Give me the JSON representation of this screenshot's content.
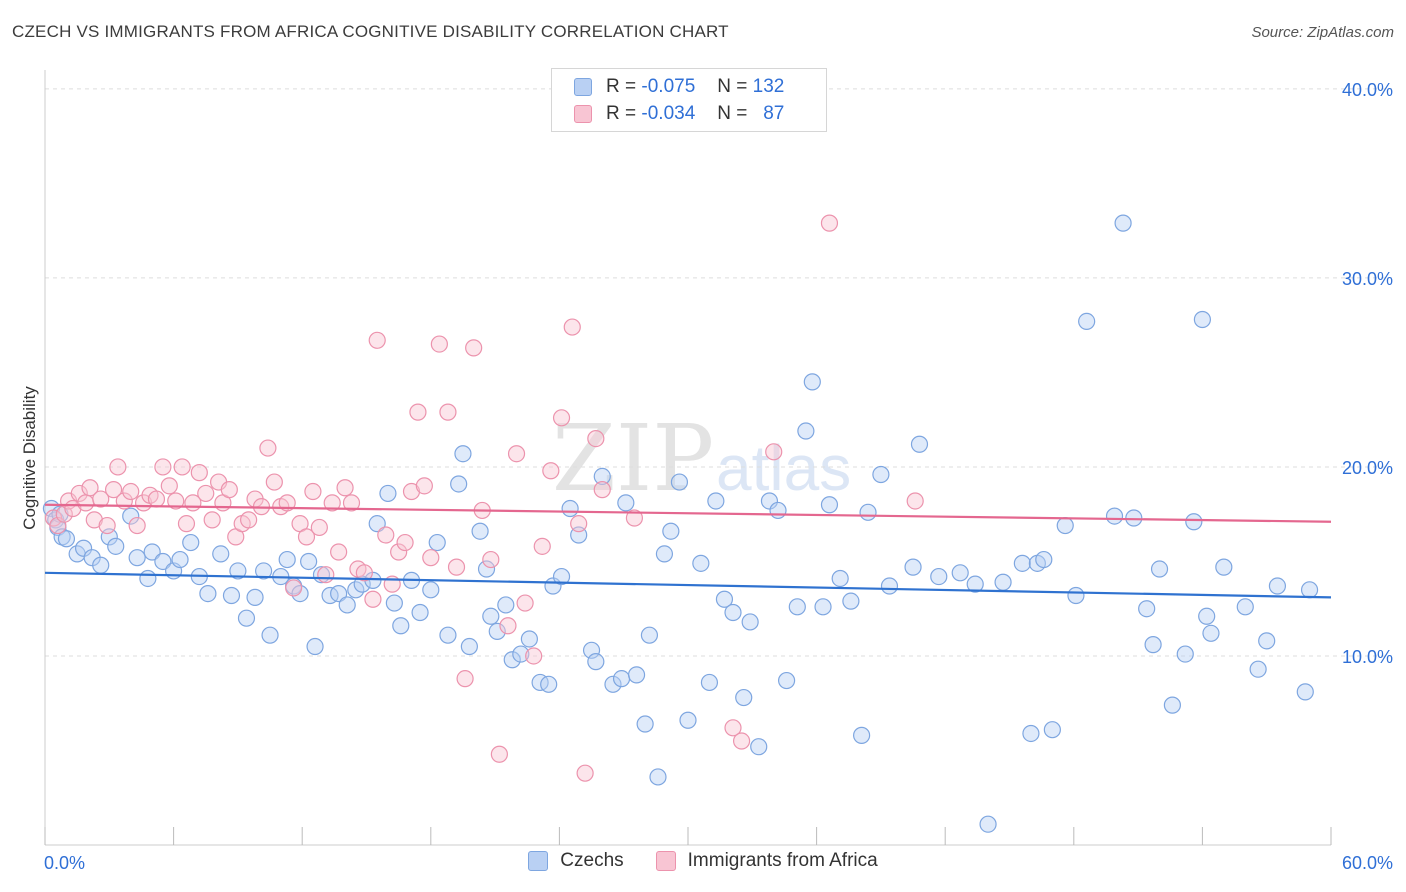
{
  "title": "CZECH VS IMMIGRANTS FROM AFRICA COGNITIVE DISABILITY CORRELATION CHART",
  "source": "Source: ZipAtlas.com",
  "watermark": {
    "zip": "ZIP",
    "atlas": "atlas"
  },
  "legend_top": [
    {
      "r_label": "R =",
      "r_value": "-0.075",
      "n_label": "N =",
      "n_value": "132"
    },
    {
      "r_label": "R =",
      "r_value": "-0.034",
      "n_label": "N =",
      "n_value": "87"
    }
  ],
  "legend_bottom": [
    "Czechs",
    "Immigrants from Africa"
  ],
  "colors": {
    "blue_fill": "#b9d0f3",
    "blue_stroke": "#7ea6e0",
    "blue_line": "#2f72d0",
    "pink_fill": "#f8c5d3",
    "pink_stroke": "#ec93ad",
    "pink_line": "#e4678f",
    "grid": "#dddddd",
    "tick_label": "#2f6fd6"
  },
  "chart_data": {
    "type": "scatter",
    "title": "CZECH VS IMMIGRANTS FROM AFRICA COGNITIVE DISABILITY CORRELATION CHART",
    "xlabel": "",
    "ylabel": "Cognitive Disability",
    "xlim": [
      0,
      60
    ],
    "ylim": [
      0,
      41
    ],
    "x_tick_labels": [
      "0.0%",
      "60.0%"
    ],
    "y_ticks": [
      10,
      20,
      30,
      40
    ],
    "y_tick_labels": [
      "10.0%",
      "20.0%",
      "30.0%",
      "40.0%"
    ],
    "grid": "horizontal dashed",
    "series": [
      {
        "name": "Czechs",
        "R": -0.075,
        "N": 132,
        "trend": [
          [
            0,
            14.4
          ],
          [
            60,
            13.1
          ]
        ],
        "points": [
          [
            0.3,
            17.8
          ],
          [
            0.5,
            17.2
          ],
          [
            0.6,
            16.8
          ],
          [
            0.8,
            16.3
          ],
          [
            0.7,
            17.5
          ],
          [
            1.0,
            16.2
          ],
          [
            1.5,
            15.4
          ],
          [
            1.8,
            15.7
          ],
          [
            2.2,
            15.2
          ],
          [
            2.6,
            14.8
          ],
          [
            3.0,
            16.3
          ],
          [
            3.3,
            15.8
          ],
          [
            4.0,
            17.4
          ],
          [
            4.3,
            15.2
          ],
          [
            4.8,
            14.1
          ],
          [
            5.0,
            15.5
          ],
          [
            5.5,
            15.0
          ],
          [
            6.0,
            14.5
          ],
          [
            6.3,
            15.1
          ],
          [
            6.8,
            16.0
          ],
          [
            7.2,
            14.2
          ],
          [
            7.6,
            13.3
          ],
          [
            8.2,
            15.4
          ],
          [
            8.7,
            13.2
          ],
          [
            9.0,
            14.5
          ],
          [
            9.4,
            12.0
          ],
          [
            9.8,
            13.1
          ],
          [
            10.2,
            14.5
          ],
          [
            10.5,
            11.1
          ],
          [
            11.0,
            14.2
          ],
          [
            11.3,
            15.1
          ],
          [
            11.6,
            13.7
          ],
          [
            11.9,
            13.3
          ],
          [
            12.3,
            15.0
          ],
          [
            12.6,
            10.5
          ],
          [
            12.9,
            14.3
          ],
          [
            13.3,
            13.2
          ],
          [
            13.7,
            13.3
          ],
          [
            14.1,
            12.7
          ],
          [
            14.5,
            13.5
          ],
          [
            14.8,
            13.8
          ],
          [
            15.3,
            14.0
          ],
          [
            15.5,
            17.0
          ],
          [
            16.0,
            18.6
          ],
          [
            16.3,
            12.8
          ],
          [
            16.6,
            11.6
          ],
          [
            17.1,
            14.0
          ],
          [
            17.5,
            12.3
          ],
          [
            18.0,
            13.5
          ],
          [
            18.3,
            16.0
          ],
          [
            18.8,
            11.1
          ],
          [
            19.3,
            19.1
          ],
          [
            19.5,
            20.7
          ],
          [
            19.8,
            10.5
          ],
          [
            20.3,
            16.6
          ],
          [
            20.6,
            14.6
          ],
          [
            20.8,
            12.1
          ],
          [
            21.1,
            11.3
          ],
          [
            21.5,
            12.7
          ],
          [
            21.8,
            9.8
          ],
          [
            22.2,
            10.1
          ],
          [
            22.6,
            10.9
          ],
          [
            23.1,
            8.6
          ],
          [
            23.5,
            8.5
          ],
          [
            23.7,
            13.7
          ],
          [
            24.1,
            14.2
          ],
          [
            24.5,
            17.8
          ],
          [
            24.9,
            16.4
          ],
          [
            25.5,
            10.3
          ],
          [
            25.7,
            9.7
          ],
          [
            26.0,
            19.5
          ],
          [
            26.5,
            8.5
          ],
          [
            26.9,
            8.8
          ],
          [
            27.1,
            18.1
          ],
          [
            27.6,
            9.0
          ],
          [
            28.0,
            6.4
          ],
          [
            28.2,
            11.1
          ],
          [
            28.6,
            3.6
          ],
          [
            28.9,
            15.4
          ],
          [
            29.2,
            16.6
          ],
          [
            29.6,
            19.2
          ],
          [
            30.0,
            6.6
          ],
          [
            30.6,
            14.9
          ],
          [
            31.0,
            8.6
          ],
          [
            31.3,
            18.2
          ],
          [
            31.7,
            13.0
          ],
          [
            32.1,
            12.3
          ],
          [
            32.6,
            7.8
          ],
          [
            32.9,
            11.8
          ],
          [
            33.3,
            5.2
          ],
          [
            33.8,
            18.2
          ],
          [
            34.2,
            17.7
          ],
          [
            34.6,
            8.7
          ],
          [
            35.1,
            12.6
          ],
          [
            35.5,
            21.9
          ],
          [
            35.8,
            24.5
          ],
          [
            36.3,
            12.6
          ],
          [
            36.6,
            18.0
          ],
          [
            37.1,
            14.1
          ],
          [
            37.6,
            12.9
          ],
          [
            38.1,
            5.8
          ],
          [
            38.4,
            17.6
          ],
          [
            39.0,
            19.6
          ],
          [
            39.4,
            13.7
          ],
          [
            40.5,
            14.7
          ],
          [
            40.8,
            21.2
          ],
          [
            41.7,
            14.2
          ],
          [
            42.7,
            14.4
          ],
          [
            43.4,
            13.8
          ],
          [
            44.0,
            1.1
          ],
          [
            44.7,
            13.9
          ],
          [
            45.6,
            14.9
          ],
          [
            46.0,
            5.9
          ],
          [
            46.3,
            14.9
          ],
          [
            46.6,
            15.1
          ],
          [
            47.0,
            6.1
          ],
          [
            47.6,
            16.9
          ],
          [
            48.1,
            13.2
          ],
          [
            48.6,
            27.7
          ],
          [
            49.9,
            17.4
          ],
          [
            50.3,
            32.9
          ],
          [
            50.8,
            17.3
          ],
          [
            51.4,
            12.5
          ],
          [
            51.7,
            10.6
          ],
          [
            52.0,
            14.6
          ],
          [
            52.6,
            7.4
          ],
          [
            53.2,
            10.1
          ],
          [
            53.6,
            17.1
          ],
          [
            54.0,
            27.8
          ],
          [
            54.2,
            12.1
          ],
          [
            54.4,
            11.2
          ],
          [
            55.0,
            14.7
          ],
          [
            56.0,
            12.6
          ],
          [
            56.6,
            9.3
          ],
          [
            57.0,
            10.8
          ],
          [
            57.5,
            13.7
          ],
          [
            58.8,
            8.1
          ],
          [
            59.0,
            13.5
          ]
        ]
      },
      {
        "name": "Immigrants from Africa",
        "R": -0.034,
        "N": 87,
        "trend": [
          [
            0,
            18.0
          ],
          [
            60,
            17.1
          ]
        ],
        "points": [
          [
            0.4,
            17.3
          ],
          [
            0.6,
            16.9
          ],
          [
            0.9,
            17.5
          ],
          [
            1.1,
            18.2
          ],
          [
            1.3,
            17.8
          ],
          [
            1.6,
            18.6
          ],
          [
            1.9,
            18.1
          ],
          [
            2.1,
            18.9
          ],
          [
            2.3,
            17.2
          ],
          [
            2.6,
            18.3
          ],
          [
            2.9,
            16.9
          ],
          [
            3.2,
            18.8
          ],
          [
            3.4,
            20.0
          ],
          [
            3.7,
            18.2
          ],
          [
            4.0,
            18.7
          ],
          [
            4.3,
            16.9
          ],
          [
            4.6,
            18.1
          ],
          [
            4.9,
            18.5
          ],
          [
            5.2,
            18.3
          ],
          [
            5.5,
            20.0
          ],
          [
            5.8,
            19.0
          ],
          [
            6.1,
            18.2
          ],
          [
            6.4,
            20.0
          ],
          [
            6.6,
            17.0
          ],
          [
            6.9,
            18.1
          ],
          [
            7.2,
            19.7
          ],
          [
            7.5,
            18.6
          ],
          [
            7.8,
            17.2
          ],
          [
            8.1,
            19.2
          ],
          [
            8.3,
            18.1
          ],
          [
            8.6,
            18.8
          ],
          [
            8.9,
            16.3
          ],
          [
            9.2,
            17.0
          ],
          [
            9.5,
            17.2
          ],
          [
            9.8,
            18.3
          ],
          [
            10.1,
            17.9
          ],
          [
            10.4,
            21.0
          ],
          [
            10.7,
            19.2
          ],
          [
            11.0,
            17.9
          ],
          [
            11.3,
            18.1
          ],
          [
            11.6,
            13.6
          ],
          [
            11.9,
            17.0
          ],
          [
            12.2,
            16.3
          ],
          [
            12.5,
            18.7
          ],
          [
            12.8,
            16.8
          ],
          [
            13.1,
            14.3
          ],
          [
            13.4,
            18.1
          ],
          [
            13.7,
            15.5
          ],
          [
            14.0,
            18.9
          ],
          [
            14.3,
            18.1
          ],
          [
            14.6,
            14.6
          ],
          [
            14.9,
            14.4
          ],
          [
            15.3,
            13.0
          ],
          [
            15.5,
            26.7
          ],
          [
            15.9,
            16.4
          ],
          [
            16.2,
            13.8
          ],
          [
            16.5,
            15.5
          ],
          [
            16.8,
            16.0
          ],
          [
            17.1,
            18.7
          ],
          [
            17.4,
            22.9
          ],
          [
            17.7,
            19.0
          ],
          [
            18.0,
            15.2
          ],
          [
            18.4,
            26.5
          ],
          [
            18.8,
            22.9
          ],
          [
            19.2,
            14.7
          ],
          [
            19.6,
            8.8
          ],
          [
            20.0,
            26.3
          ],
          [
            20.4,
            17.7
          ],
          [
            20.8,
            15.1
          ],
          [
            21.2,
            4.8
          ],
          [
            21.6,
            11.6
          ],
          [
            22.0,
            20.7
          ],
          [
            22.4,
            12.8
          ],
          [
            22.8,
            10.0
          ],
          [
            23.2,
            15.8
          ],
          [
            23.6,
            19.8
          ],
          [
            24.1,
            22.6
          ],
          [
            24.6,
            27.4
          ],
          [
            24.9,
            17.0
          ],
          [
            25.2,
            3.8
          ],
          [
            25.7,
            21.5
          ],
          [
            26.0,
            18.8
          ],
          [
            27.5,
            17.3
          ],
          [
            32.1,
            6.2
          ],
          [
            32.5,
            5.5
          ],
          [
            34.0,
            20.8
          ],
          [
            36.6,
            32.9
          ],
          [
            40.6,
            18.2
          ]
        ]
      }
    ]
  }
}
